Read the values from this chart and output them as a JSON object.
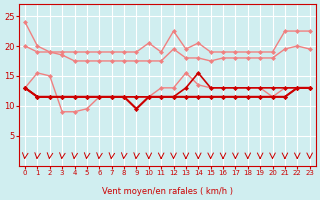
{
  "title": "",
  "xlabel": "Vent moyen/en rafales ( km/h )",
  "background_color": "#d0eef0",
  "grid_color": "#ffffff",
  "x": [
    0,
    1,
    2,
    3,
    4,
    5,
    6,
    7,
    8,
    9,
    10,
    11,
    12,
    13,
    14,
    15,
    16,
    17,
    18,
    19,
    20,
    21,
    22,
    23
  ],
  "series": [
    {
      "name": "rafales_high",
      "color": "#f08080",
      "linewidth": 1.0,
      "marker": "D",
      "markersize": 2,
      "values": [
        24.0,
        20.0,
        19.0,
        19.0,
        19.0,
        19.0,
        19.0,
        19.0,
        19.0,
        19.0,
        20.5,
        19.0,
        22.5,
        19.5,
        20.5,
        19.0,
        19.0,
        19.0,
        19.0,
        19.0,
        19.0,
        22.5,
        22.5,
        22.5
      ]
    },
    {
      "name": "rafales_mid",
      "color": "#f08080",
      "linewidth": 1.0,
      "marker": "D",
      "markersize": 2,
      "values": [
        20.0,
        19.0,
        19.0,
        18.5,
        17.5,
        17.5,
        17.5,
        17.5,
        17.5,
        17.5,
        17.5,
        17.5,
        19.5,
        18.0,
        18.0,
        17.5,
        18.0,
        18.0,
        18.0,
        18.0,
        18.0,
        19.5,
        20.0,
        19.5
      ]
    },
    {
      "name": "vent_high_light",
      "color": "#f08080",
      "linewidth": 1.0,
      "marker": "D",
      "markersize": 2,
      "values": [
        13.0,
        15.5,
        15.0,
        9.0,
        9.0,
        9.5,
        11.5,
        11.5,
        11.5,
        9.5,
        11.5,
        13.0,
        13.0,
        15.5,
        13.5,
        13.0,
        13.0,
        13.0,
        13.0,
        13.0,
        11.5,
        13.0,
        13.0,
        13.0
      ]
    },
    {
      "name": "vent_dark1",
      "color": "#cc0000",
      "linewidth": 1.2,
      "marker": "D",
      "markersize": 2,
      "values": [
        13.0,
        11.5,
        11.5,
        11.5,
        11.5,
        11.5,
        11.5,
        11.5,
        11.5,
        11.5,
        11.5,
        11.5,
        11.5,
        13.0,
        15.5,
        13.0,
        13.0,
        13.0,
        13.0,
        13.0,
        13.0,
        13.0,
        13.0,
        13.0
      ]
    },
    {
      "name": "vent_dark2",
      "color": "#cc0000",
      "linewidth": 1.5,
      "marker": "D",
      "markersize": 2,
      "values": [
        13.0,
        11.5,
        11.5,
        11.5,
        11.5,
        11.5,
        11.5,
        11.5,
        11.5,
        9.5,
        11.5,
        11.5,
        11.5,
        11.5,
        11.5,
        11.5,
        11.5,
        11.5,
        11.5,
        11.5,
        11.5,
        11.5,
        13.0,
        13.0
      ]
    },
    {
      "name": "vent_dark3",
      "color": "#cc0000",
      "linewidth": 1.0,
      "marker": "D",
      "markersize": 2,
      "values": [
        13.0,
        11.5,
        11.5,
        11.5,
        11.5,
        11.5,
        11.5,
        11.5,
        11.5,
        11.5,
        11.5,
        11.5,
        11.5,
        11.5,
        11.5,
        11.5,
        11.5,
        11.5,
        11.5,
        11.5,
        11.5,
        11.5,
        13.0,
        13.0
      ]
    }
  ],
  "arrows": {
    "y": 1.5,
    "color": "#cc0000",
    "x_positions": [
      0,
      1,
      2,
      3,
      4,
      5,
      6,
      7,
      8,
      9,
      10,
      11,
      12,
      13,
      14,
      15,
      16,
      17,
      18,
      19,
      20,
      21,
      22,
      23
    ],
    "angles": [
      225,
      225,
      225,
      225,
      225,
      225,
      225,
      225,
      225,
      225,
      270,
      270,
      270,
      270,
      270,
      270,
      270,
      270,
      270,
      270,
      270,
      270,
      270,
      270
    ]
  },
  "yticks": [
    5,
    10,
    15,
    20,
    25
  ],
  "xticks": [
    0,
    1,
    2,
    3,
    4,
    5,
    6,
    7,
    8,
    9,
    10,
    11,
    12,
    13,
    14,
    15,
    16,
    17,
    18,
    19,
    20,
    21,
    22,
    23
  ],
  "ylim": [
    0,
    27
  ],
  "xlim": [
    -0.5,
    23.5
  ]
}
